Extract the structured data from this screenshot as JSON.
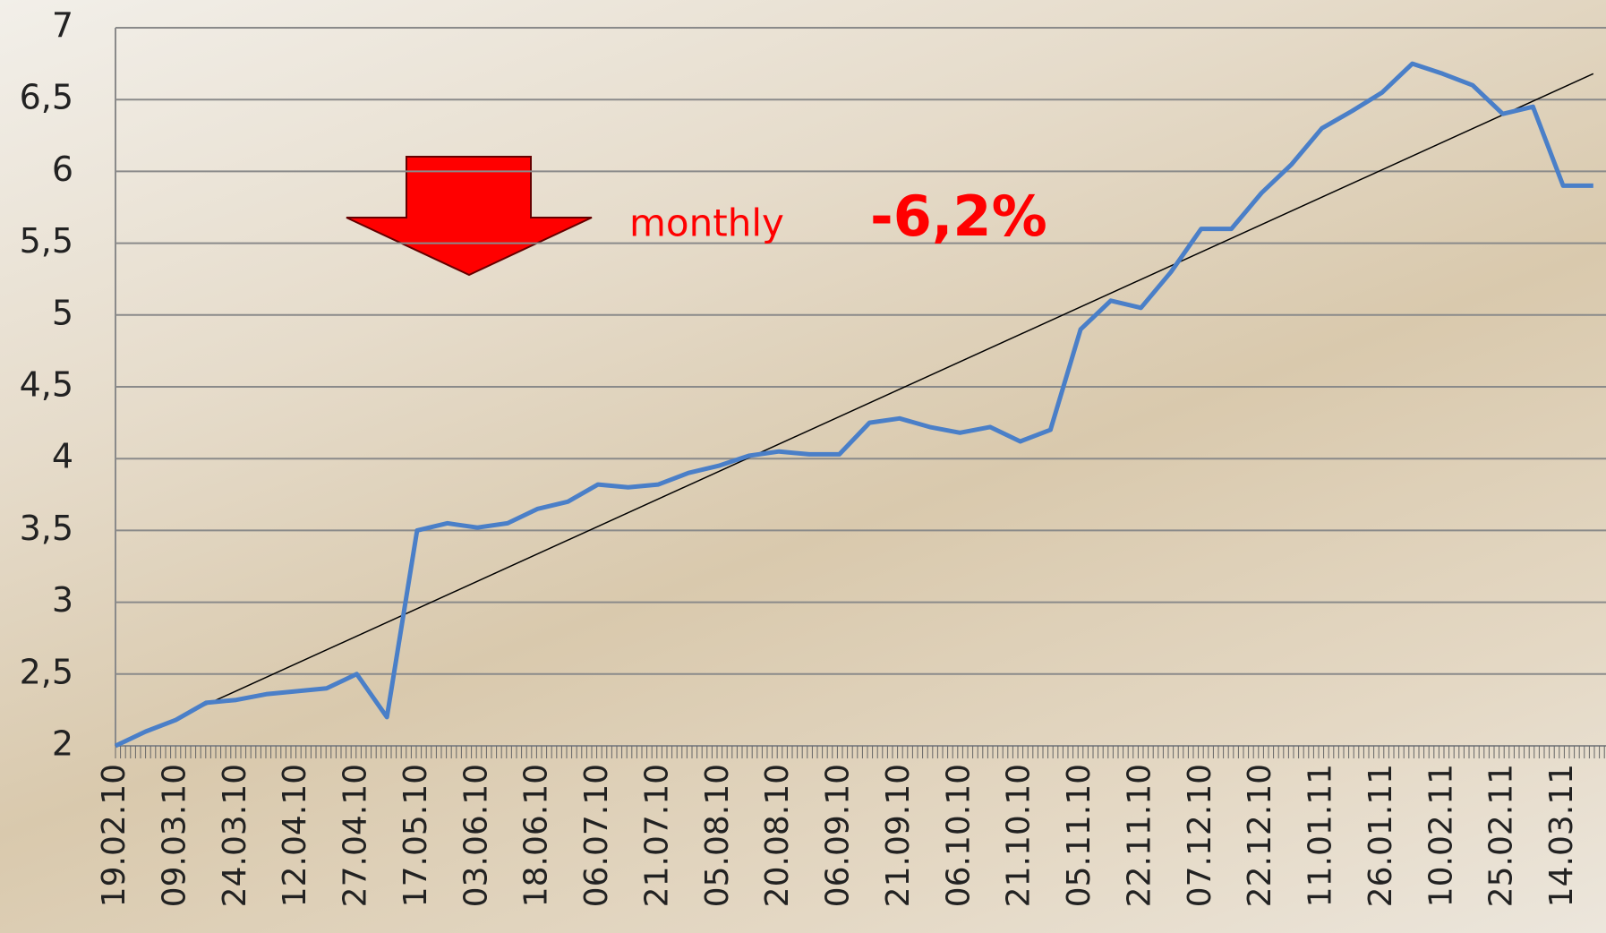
{
  "chart_data": {
    "type": "line",
    "categories": [
      "19.02.10",
      null,
      "09.03.10",
      null,
      "24.03.10",
      null,
      "12.04.10",
      null,
      "27.04.10",
      null,
      "17.05.10",
      null,
      "03.06.10",
      null,
      "18.06.10",
      null,
      "06.07.10",
      null,
      "21.07.10",
      null,
      "05.08.10",
      null,
      "20.08.10",
      null,
      "06.09.10",
      null,
      "21.09.10",
      null,
      "06.10.10",
      null,
      "21.10.10",
      null,
      "05.11.10",
      null,
      "22.11.10",
      null,
      "07.12.10",
      null,
      "22.12.10",
      null,
      "11.01.11",
      null,
      "26.01.11",
      null,
      "10.02.11",
      null,
      "25.02.11",
      null,
      "14.03.11",
      null
    ],
    "series": [
      {
        "color": "#4a7fc8",
        "values": [
          2.0,
          2.1,
          2.18,
          2.3,
          2.32,
          2.36,
          2.38,
          2.4,
          2.5,
          2.2,
          3.5,
          3.55,
          3.52,
          3.55,
          3.65,
          3.7,
          3.82,
          3.8,
          3.82,
          3.9,
          3.95,
          4.02,
          4.05,
          4.03,
          4.03,
          4.25,
          4.28,
          4.22,
          4.18,
          4.22,
          4.12,
          4.2,
          4.9,
          5.1,
          5.05,
          5.3,
          5.6,
          5.6,
          5.85,
          6.05,
          6.3,
          6.42,
          6.55,
          6.75,
          6.68,
          6.6,
          6.4,
          6.45,
          5.9,
          5.9
        ]
      }
    ],
    "trend": {
      "color": "#000000",
      "values": [
        2.0,
        6.68
      ]
    },
    "ylim": [
      2,
      7
    ],
    "yticks": [
      2,
      {
        "value": 2.5,
        "label": "2,5"
      },
      3,
      {
        "value": 3.5,
        "label": "3,5"
      },
      4,
      {
        "value": 4.5,
        "label": "4,5"
      },
      5,
      {
        "value": 5.5,
        "label": "5,5"
      },
      6,
      {
        "value": 6.5,
        "label": "6,5"
      },
      7
    ],
    "grid": true,
    "annotations": [
      {
        "text": "monthly",
        "color": "#ff0000"
      },
      {
        "text": "-6,2%",
        "color": "#ff0000"
      }
    ]
  }
}
